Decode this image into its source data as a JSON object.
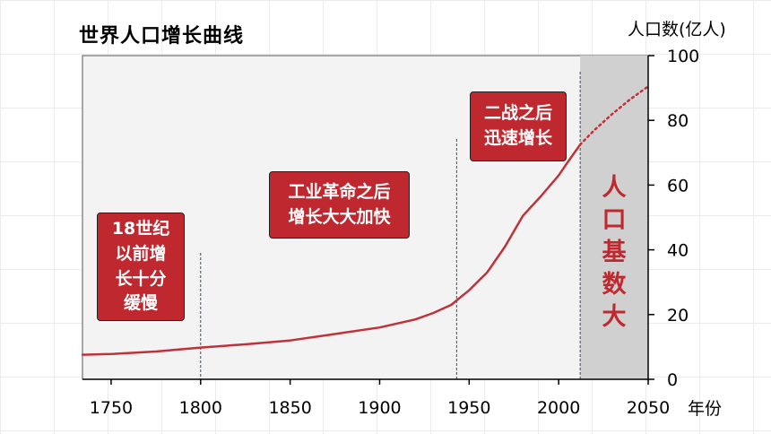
{
  "title": "世界人口增长曲线",
  "y_unit": "人口数(亿人)",
  "x_unit": "年份",
  "callouts": {
    "c1": "18世纪\n以前增\n长十分\n缓慢",
    "c2": "工业革命之后\n增长大大加快",
    "c3": "二战之后\n迅速增长"
  },
  "shaded_label": "人口基数大",
  "colors": {
    "curve": "#c0313a",
    "callout_bg": "#c0282f",
    "shade": "#d0d0d0",
    "plot_bg": "#f3f3f3"
  },
  "chart_data": {
    "type": "line",
    "title": "世界人口增长曲线",
    "xlabel": "年份",
    "ylabel": "人口数(亿人)",
    "xlim": [
      1734,
      2050
    ],
    "ylim": [
      0,
      100
    ],
    "xticks": [
      1750,
      1800,
      1850,
      1900,
      1950,
      2000,
      2050
    ],
    "yticks": [
      0,
      20,
      40,
      60,
      80,
      100
    ],
    "grid": false,
    "series": [
      {
        "name": "",
        "style": "solid",
        "x": [
          1734,
          1750,
          1775,
          1800,
          1825,
          1850,
          1875,
          1900,
          1920,
          1930,
          1940,
          1950,
          1960,
          1970,
          1980,
          1990,
          2000,
          2005,
          2012
        ],
        "y": [
          7.6,
          7.8,
          8.6,
          9.8,
          10.8,
          12.0,
          14.0,
          16.0,
          18.5,
          20.5,
          23,
          27.5,
          33,
          41,
          50.5,
          56.5,
          63,
          67,
          72.5
        ]
      },
      {
        "name": "",
        "style": "dotted",
        "x": [
          2012,
          2020,
          2030,
          2040,
          2050
        ],
        "y": [
          72.5,
          77,
          82,
          86.5,
          90.5
        ]
      }
    ],
    "vlines": [
      1800,
      1943,
      2012
    ],
    "shaded_range": [
      2012,
      2050
    ]
  }
}
